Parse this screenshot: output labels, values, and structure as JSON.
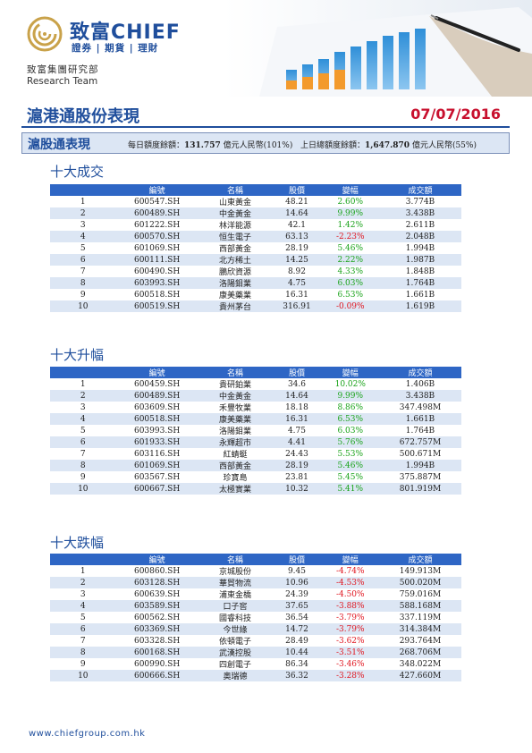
{
  "brand": {
    "name": "致富CHIEF",
    "tagline": "證券 | 期貨 | 理財",
    "dept_cn": "致富集團研究部",
    "dept_en": "Research Team"
  },
  "report": {
    "title": "滬港通股份表現",
    "date": "07/07/2016"
  },
  "quota": {
    "label": "滬股通表現",
    "daily_prefix": "每日額度餘額：",
    "daily_value": "131.757",
    "daily_suffix": " 億元人民幣(101%)",
    "prev_prefix": "上日總額度餘額：",
    "prev_value": "1,647.870",
    "prev_suffix": " 億元人民幣(55%)"
  },
  "columns": [
    "",
    "編號",
    "名稱",
    "股價",
    "變幅",
    "成交額"
  ],
  "sections": [
    {
      "title": "十大成交",
      "rows": [
        [
          "1",
          "600547.SH",
          "山東黃金",
          "48.21",
          "2.60%",
          "3.774B"
        ],
        [
          "2",
          "600489.SH",
          "中金黃金",
          "14.64",
          "9.99%",
          "3.438B"
        ],
        [
          "3",
          "601222.SH",
          "林洋能源",
          "42.1",
          "1.42%",
          "2.611B"
        ],
        [
          "4",
          "600570.SH",
          "恒生電子",
          "63.13",
          "-2.23%",
          "2.048B"
        ],
        [
          "5",
          "601069.SH",
          "西部黃金",
          "28.19",
          "5.46%",
          "1.994B"
        ],
        [
          "6",
          "600111.SH",
          "北方稀土",
          "14.25",
          "2.22%",
          "1.987B"
        ],
        [
          "7",
          "600490.SH",
          "鵬欣資源",
          "8.92",
          "4.33%",
          "1.848B"
        ],
        [
          "8",
          "603993.SH",
          "洛陽鉬業",
          "4.75",
          "6.03%",
          "1.764B"
        ],
        [
          "9",
          "600518.SH",
          "康美藥業",
          "16.31",
          "6.53%",
          "1.661B"
        ],
        [
          "10",
          "600519.SH",
          "貴州茅台",
          "316.91",
          "-0.09%",
          "1.619B"
        ]
      ]
    },
    {
      "title": "十大升幅",
      "rows": [
        [
          "1",
          "600459.SH",
          "貴研鉑業",
          "34.6",
          "10.02%",
          "1.406B"
        ],
        [
          "2",
          "600489.SH",
          "中金黃金",
          "14.64",
          "9.99%",
          "3.438B"
        ],
        [
          "3",
          "603609.SH",
          "禾豐牧業",
          "18.18",
          "8.86%",
          "347.498M"
        ],
        [
          "4",
          "600518.SH",
          "康美藥業",
          "16.31",
          "6.53%",
          "1.661B"
        ],
        [
          "5",
          "603993.SH",
          "洛陽鉬業",
          "4.75",
          "6.03%",
          "1.764B"
        ],
        [
          "6",
          "601933.SH",
          "永輝超市",
          "4.41",
          "5.76%",
          "672.757M"
        ],
        [
          "7",
          "603116.SH",
          "紅蜻蜓",
          "24.43",
          "5.53%",
          "500.671M"
        ],
        [
          "8",
          "601069.SH",
          "西部黃金",
          "28.19",
          "5.46%",
          "1.994B"
        ],
        [
          "9",
          "603567.SH",
          "珍寶島",
          "23.81",
          "5.45%",
          "375.887M"
        ],
        [
          "10",
          "600667.SH",
          "太極實業",
          "10.32",
          "5.41%",
          "801.919M"
        ]
      ]
    },
    {
      "title": "十大跌幅",
      "rows": [
        [
          "1",
          "600860.SH",
          "京城股份",
          "9.45",
          "-4.74%",
          "149.913M"
        ],
        [
          "2",
          "603128.SH",
          "華貿物流",
          "10.96",
          "-4.53%",
          "500.020M"
        ],
        [
          "3",
          "600639.SH",
          "浦東金橋",
          "24.39",
          "-4.50%",
          "759.016M"
        ],
        [
          "4",
          "603589.SH",
          "口子窖",
          "37.65",
          "-3.88%",
          "588.168M"
        ],
        [
          "5",
          "600562.SH",
          "國睿科技",
          "36.54",
          "-3.79%",
          "337.119M"
        ],
        [
          "6",
          "603369.SH",
          "今世緣",
          "14.72",
          "-3.79%",
          "314.384M"
        ],
        [
          "7",
          "603328.SH",
          "依頓電子",
          "28.49",
          "-3.62%",
          "293.764M"
        ],
        [
          "8",
          "600168.SH",
          "武漢控股",
          "10.44",
          "-3.51%",
          "268.706M"
        ],
        [
          "9",
          "600990.SH",
          "四創電子",
          "86.34",
          "-3.46%",
          "348.022M"
        ],
        [
          "10",
          "600666.SH",
          "奧瑞德",
          "36.32",
          "-3.28%",
          "427.660M"
        ]
      ]
    }
  ],
  "footer": "www.chiefgroup.com.hk",
  "colors": {
    "brand_blue": "#1f4e9c",
    "header_blue": "#2e66c5",
    "alt_row": "#dce6f4",
    "positive": "#1aa31a",
    "negative": "#e0141e",
    "date_red": "#c8102e"
  }
}
